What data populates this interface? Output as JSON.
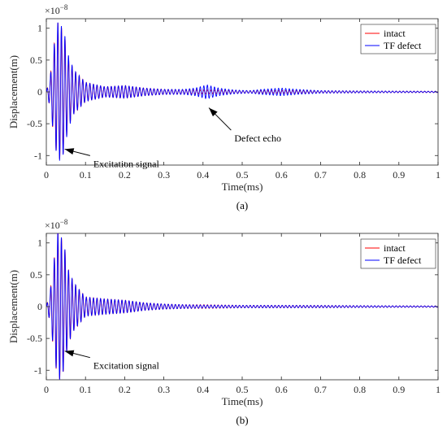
{
  "chart_data": [
    {
      "type": "line",
      "panel_label": "(a)",
      "xlabel": "Time(ms)",
      "ylabel": "Displacement(m)",
      "y_exponent_base": "×10",
      "y_exponent_power": "−8",
      "xlim": [
        0,
        1
      ],
      "ylim": [
        -1.15,
        1.15
      ],
      "xticks": [
        "0",
        "0.1",
        "0.2",
        "0.3",
        "0.4",
        "0.5",
        "0.6",
        "0.7",
        "0.8",
        "0.9",
        "1"
      ],
      "yticks": [
        "1",
        "0.5",
        "0",
        "-0.5",
        "-1"
      ],
      "grid": false,
      "legend_position": "top-right",
      "colors": {
        "intact": "#ff0000",
        "tf_defect": "#0000ff"
      },
      "series": [
        {
          "name": "intact",
          "color": "#ff0000",
          "envelope": [
            [
              0.0,
              0.0
            ],
            [
              0.01,
              0.25
            ],
            [
              0.02,
              0.75
            ],
            [
              0.03,
              1.1
            ],
            [
              0.045,
              0.95
            ],
            [
              0.055,
              0.55
            ],
            [
              0.07,
              0.35
            ],
            [
              0.1,
              0.15
            ],
            [
              0.15,
              0.08
            ],
            [
              0.2,
              0.1
            ],
            [
              0.25,
              0.06
            ],
            [
              0.3,
              0.04
            ],
            [
              0.35,
              0.035
            ],
            [
              0.4,
              0.03
            ],
            [
              0.5,
              0.02
            ],
            [
              0.6,
              0.02
            ],
            [
              0.7,
              0.018
            ],
            [
              0.8,
              0.015
            ],
            [
              0.9,
              0.012
            ],
            [
              1.0,
              0.01
            ]
          ]
        },
        {
          "name": "TF defect",
          "color": "#0000ff",
          "envelope": [
            [
              0.0,
              0.0
            ],
            [
              0.01,
              0.25
            ],
            [
              0.02,
              0.75
            ],
            [
              0.03,
              1.12
            ],
            [
              0.045,
              0.97
            ],
            [
              0.055,
              0.6
            ],
            [
              0.07,
              0.35
            ],
            [
              0.1,
              0.15
            ],
            [
              0.15,
              0.08
            ],
            [
              0.2,
              0.1
            ],
            [
              0.25,
              0.06
            ],
            [
              0.3,
              0.04
            ],
            [
              0.35,
              0.04
            ],
            [
              0.38,
              0.06
            ],
            [
              0.41,
              0.11
            ],
            [
              0.44,
              0.06
            ],
            [
              0.48,
              0.03
            ],
            [
              0.52,
              0.02
            ],
            [
              0.55,
              0.04
            ],
            [
              0.6,
              0.06
            ],
            [
              0.64,
              0.04
            ],
            [
              0.7,
              0.02
            ],
            [
              0.8,
              0.015
            ],
            [
              0.9,
              0.012
            ],
            [
              1.0,
              0.01
            ]
          ]
        }
      ],
      "annotations": [
        {
          "text": "Excitation signal",
          "arrow_tip": [
            0.047,
            -0.9
          ],
          "text_anchor_at": [
            0.12,
            -1.18
          ]
        },
        {
          "text": "Defect echo",
          "arrow_tip": [
            0.415,
            -0.25
          ],
          "text_anchor_at": [
            0.48,
            -0.78
          ]
        }
      ]
    },
    {
      "type": "line",
      "panel_label": "(b)",
      "xlabel": "Time(ms)",
      "ylabel": "Displacement(m)",
      "y_exponent_base": "×10",
      "y_exponent_power": "−8",
      "xlim": [
        0,
        1
      ],
      "ylim": [
        -1.15,
        1.15
      ],
      "xticks": [
        "0",
        "0.1",
        "0.2",
        "0.3",
        "0.4",
        "0.5",
        "0.6",
        "0.7",
        "0.8",
        "0.9",
        "1"
      ],
      "yticks": [
        "1",
        "0.5",
        "0",
        "-0.5",
        "-1"
      ],
      "grid": false,
      "legend_position": "top-right",
      "colors": {
        "intact": "#ff0000",
        "tf_defect": "#0000ff"
      },
      "series": [
        {
          "name": "intact",
          "color": "#ff0000",
          "envelope": [
            [
              0.0,
              0.0
            ],
            [
              0.01,
              0.25
            ],
            [
              0.02,
              0.75
            ],
            [
              0.03,
              1.2
            ],
            [
              0.045,
              1.0
            ],
            [
              0.055,
              0.6
            ],
            [
              0.07,
              0.38
            ],
            [
              0.1,
              0.15
            ],
            [
              0.15,
              0.12
            ],
            [
              0.2,
              0.1
            ],
            [
              0.25,
              0.06
            ],
            [
              0.3,
              0.04
            ],
            [
              0.35,
              0.03
            ],
            [
              0.4,
              0.03
            ],
            [
              0.5,
              0.02
            ],
            [
              0.6,
              0.02
            ],
            [
              0.7,
              0.018
            ],
            [
              0.8,
              0.015
            ],
            [
              0.9,
              0.012
            ],
            [
              1.0,
              0.01
            ]
          ]
        },
        {
          "name": "TF defect",
          "color": "#0000ff",
          "envelope": [
            [
              0.0,
              0.0
            ],
            [
              0.01,
              0.25
            ],
            [
              0.02,
              0.75
            ],
            [
              0.03,
              1.2
            ],
            [
              0.045,
              1.0
            ],
            [
              0.055,
              0.6
            ],
            [
              0.07,
              0.38
            ],
            [
              0.1,
              0.15
            ],
            [
              0.15,
              0.12
            ],
            [
              0.2,
              0.1
            ],
            [
              0.25,
              0.06
            ],
            [
              0.3,
              0.04
            ],
            [
              0.35,
              0.03
            ],
            [
              0.4,
              0.025
            ],
            [
              0.5,
              0.02
            ],
            [
              0.6,
              0.02
            ],
            [
              0.7,
              0.018
            ],
            [
              0.8,
              0.015
            ],
            [
              0.9,
              0.012
            ],
            [
              1.0,
              0.01
            ]
          ]
        }
      ],
      "annotations": [
        {
          "text": "Excitation signal",
          "arrow_tip": [
            0.047,
            -0.7
          ],
          "text_anchor_at": [
            0.12,
            -0.98
          ]
        }
      ]
    }
  ]
}
